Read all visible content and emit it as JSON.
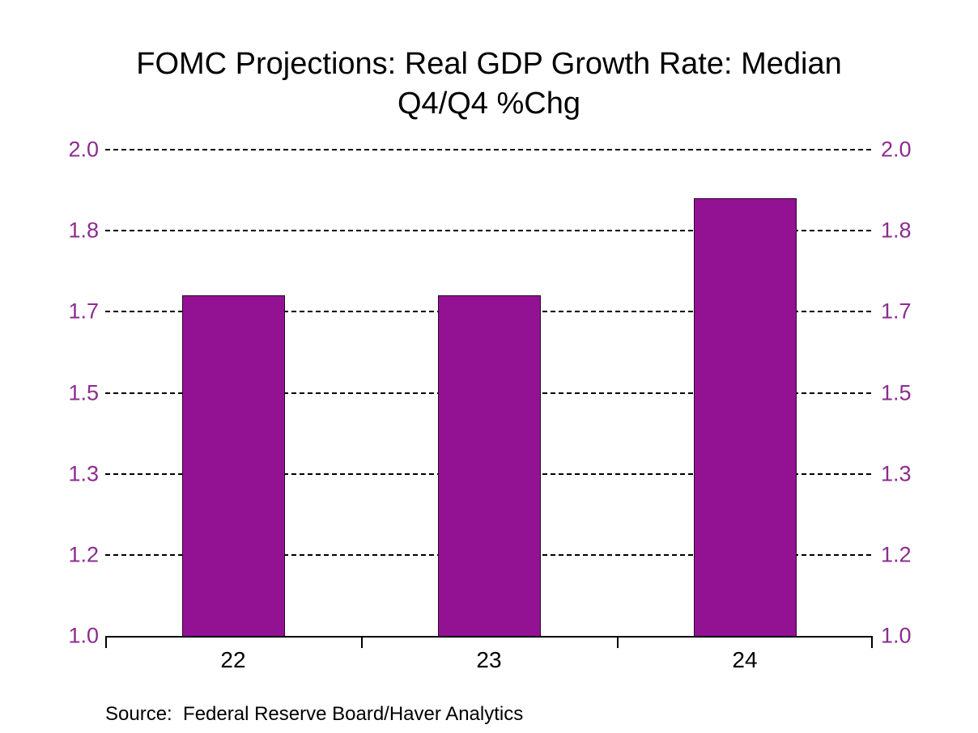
{
  "colors": {
    "background": "#ffffff",
    "title_text": "#000000",
    "bar_fill": "#931293",
    "bar_border": "#2b072b",
    "y_tick_label": "#8b2c8f",
    "x_tick_label": "#000000",
    "gridline": "#000000",
    "axis_line": "#000000",
    "source_text": "#000000"
  },
  "chart_data": {
    "type": "bar",
    "title": "FOMC Projections: Real GDP Growth Rate: Median Q4/Q4 %Chg",
    "title_lines": [
      "FOMC Projections: Real GDP Growth Rate: Median",
      "Q4/Q4 %Chg"
    ],
    "categories": [
      "22",
      "23",
      "24"
    ],
    "values": [
      1.7,
      1.7,
      1.9
    ],
    "ylim": [
      1.0,
      2.0
    ],
    "y_axis": {
      "sides": [
        "left",
        "right"
      ],
      "gridlines": [
        {
          "label": "2.0",
          "value": 2.0
        },
        {
          "label": "1.8",
          "value": 1.8333
        },
        {
          "label": "1.7",
          "value": 1.6667
        },
        {
          "label": "1.5",
          "value": 1.5
        },
        {
          "label": "1.3",
          "value": 1.3333
        },
        {
          "label": "1.2",
          "value": 1.1667
        },
        {
          "label": "1.0",
          "value": 1.0
        }
      ]
    },
    "grid": "horizontal-dashed",
    "legend": "none",
    "xlabel": "",
    "ylabel": "",
    "source": "Source:  Federal Reserve Board/Haver Analytics"
  }
}
